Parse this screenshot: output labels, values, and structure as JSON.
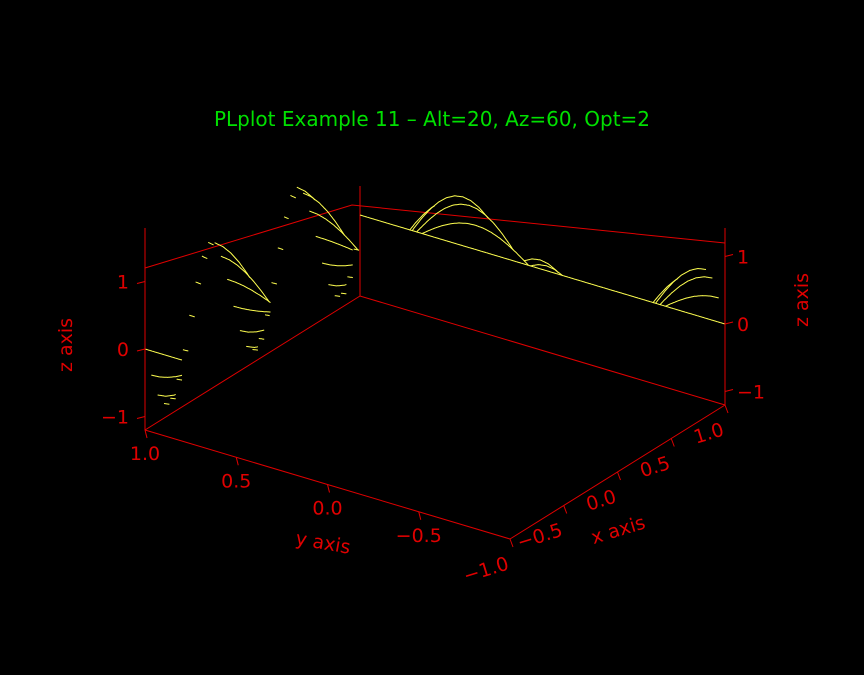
{
  "chart_data": {
    "type": "surface-3d",
    "title": "PLplot Example 11 – Alt=20, Az=60, Opt=2",
    "xlabel": "x axis",
    "ylabel": "y axis",
    "zlabel": "z axis",
    "xlim": [
      -1.0,
      1.0
    ],
    "ylim": [
      -1.0,
      1.0
    ],
    "zlim": [
      -1.2,
      1.2
    ],
    "altitude": 20,
    "azimuth": 60,
    "opt": 2,
    "x_ticks": [
      "−1.0",
      "−0.5",
      "0.0",
      "0.5",
      "1.0"
    ],
    "y_ticks": [
      "1.0",
      "0.5",
      "0.0",
      "−0.5"
    ],
    "z_ticks_left": [
      "1",
      "0",
      "−1"
    ],
    "z_ticks_right": [
      "1",
      "0",
      "−1"
    ],
    "grid": false,
    "x_samples": 35,
    "y_samples": 46
  },
  "colors": {
    "background": "#000000",
    "axes": "#e00000",
    "surface": "#ffff50",
    "title": "#00e000"
  }
}
